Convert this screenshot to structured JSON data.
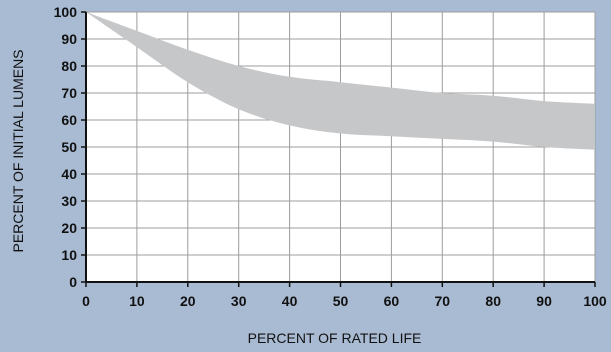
{
  "chart_data": {
    "type": "area",
    "title": "",
    "xlabel": "PERCENT OF RATED LIFE",
    "ylabel": "PERCENT  OF INITIAL LUMENS",
    "xlim": [
      0,
      100
    ],
    "ylim": [
      0,
      100
    ],
    "grid": true,
    "x_ticks": [
      "0",
      "10",
      "20",
      "30",
      "40",
      "50",
      "60",
      "70",
      "80",
      "90",
      "100"
    ],
    "y_ticks": [
      "0",
      "10",
      "20",
      "30",
      "40",
      "50",
      "60",
      "70",
      "80",
      "90",
      "100"
    ],
    "band": {
      "x": [
        0,
        10,
        20,
        30,
        40,
        50,
        60,
        70,
        80,
        90,
        100
      ],
      "upper": [
        100,
        93,
        86,
        80,
        76,
        74,
        72,
        70,
        69,
        67,
        66
      ],
      "lower": [
        100,
        87,
        74,
        64,
        58,
        55,
        54,
        53,
        52,
        50,
        49
      ]
    },
    "colors": {
      "background": "#a9bbd3",
      "plot_background": "#ffffff",
      "band_fill": "#c6c7c9",
      "grid": "#9c9c9c",
      "axis": "#111111"
    }
  }
}
